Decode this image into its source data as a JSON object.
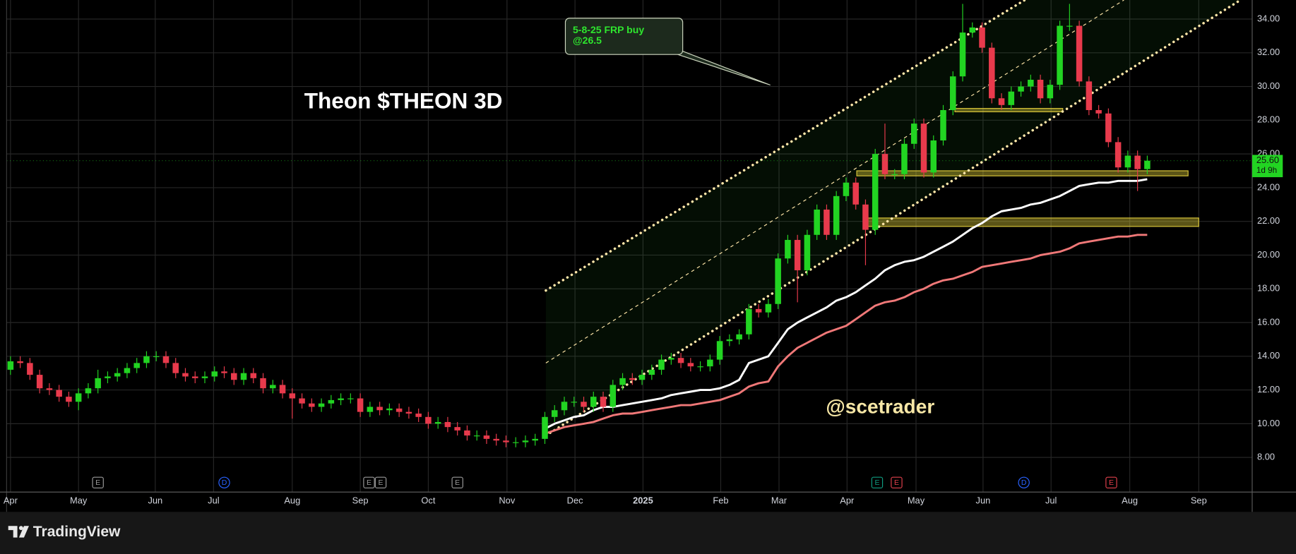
{
  "chart_data": {
    "type": "candlestick",
    "title": "Theon $THEON 3D",
    "watermark": "@scetrader",
    "annotation": {
      "lines": [
        "5-8-25 FRP buy",
        "@26.5"
      ]
    },
    "ylim": [
      6.14,
      35.13
    ],
    "xlim": [
      -0.4,
      127.8
    ],
    "yticks": [
      {
        "value": 8,
        "label": "8.00"
      },
      {
        "value": 10,
        "label": "10.00"
      },
      {
        "value": 12,
        "label": "12.00"
      },
      {
        "value": 14,
        "label": "14.00"
      },
      {
        "value": 16,
        "label": "16.00"
      },
      {
        "value": 18,
        "label": "18.00"
      },
      {
        "value": 20,
        "label": "20.00"
      },
      {
        "value": 22,
        "label": "22.00"
      },
      {
        "value": 24,
        "label": "24.00"
      },
      {
        "value": 26,
        "label": "26.00"
      },
      {
        "value": 28,
        "label": "28.00"
      },
      {
        "value": 30,
        "label": "30.00"
      },
      {
        "value": 32,
        "label": "32.00"
      },
      {
        "value": 34,
        "label": "34.00"
      }
    ],
    "xticks": [
      {
        "value": 0,
        "label": "Apr"
      },
      {
        "value": 7.0,
        "label": "May"
      },
      {
        "value": 14.9,
        "label": "Jun"
      },
      {
        "value": 20.9,
        "label": "Jul"
      },
      {
        "value": 29.0,
        "label": "Aug"
      },
      {
        "value": 36.0,
        "label": "Sep"
      },
      {
        "value": 43.0,
        "label": "Oct"
      },
      {
        "value": 51.1,
        "label": "Nov"
      },
      {
        "value": 58.1,
        "label": "Dec"
      },
      {
        "value": 65.1,
        "label": "2025"
      },
      {
        "value": 73.1,
        "label": "Feb"
      },
      {
        "value": 79.1,
        "label": "Mar"
      },
      {
        "value": 86.1,
        "label": "Apr"
      },
      {
        "value": 93.2,
        "label": "May"
      },
      {
        "value": 100.1,
        "label": "Jun"
      },
      {
        "value": 107.1,
        "label": "Jul"
      },
      {
        "value": 115.2,
        "label": "Aug"
      },
      {
        "value": 122.3,
        "label": "Sep"
      }
    ],
    "grid": true,
    "up_color": "#22d422",
    "down_color": "#e83a4c",
    "ohlc": {
      "open": [
        13.2,
        13.7,
        13.6,
        12.9,
        12.1,
        12.0,
        11.6,
        11.3,
        11.8,
        12.1,
        12.7,
        12.8,
        13.0,
        13.3,
        13.6,
        14.0,
        14.0,
        13.6,
        13.0,
        12.8,
        12.7,
        12.8,
        13.1,
        13.0,
        12.6,
        13.0,
        12.7,
        12.1,
        12.3,
        11.8,
        11.5,
        11.2,
        11.0,
        11.2,
        11.4,
        11.5,
        11.5,
        10.7,
        11.0,
        10.8,
        10.9,
        10.7,
        10.6,
        10.4,
        10.0,
        10.1,
        9.8,
        9.6,
        9.3,
        9.3,
        9.1,
        9.0,
        8.9,
        8.9,
        9.0,
        9.1,
        10.4,
        10.8,
        11.3,
        11.3,
        11.0,
        11.6,
        11.0,
        12.3,
        12.7,
        12.6,
        12.9,
        13.2,
        13.8,
        13.9,
        13.6,
        13.4,
        13.4,
        13.8,
        14.9,
        15.0,
        15.3,
        16.8,
        16.6,
        17.1,
        19.8,
        20.9,
        19.1,
        21.2,
        22.7,
        21.2,
        23.5,
        24.3,
        23.0,
        21.5,
        26.0,
        24.8,
        24.8,
        26.6,
        27.8,
        24.9,
        26.8,
        28.6,
        30.6,
        33.2,
        33.5,
        32.3,
        29.3,
        28.9,
        29.7,
        30.0,
        30.4,
        29.3,
        30.1,
        33.6,
        33.6,
        30.3,
        28.6,
        28.4,
        26.7,
        25.2,
        25.9,
        25.1
      ],
      "high": [
        14.0,
        14.0,
        13.9,
        13.2,
        12.4,
        12.3,
        11.9,
        12.1,
        12.4,
        13.2,
        13.1,
        13.3,
        13.6,
        13.9,
        14.3,
        14.3,
        14.3,
        13.9,
        13.3,
        13.1,
        13.1,
        13.4,
        13.4,
        13.3,
        13.3,
        13.3,
        13.0,
        12.6,
        12.6,
        12.1,
        11.8,
        11.5,
        11.5,
        11.7,
        11.8,
        11.8,
        11.8,
        11.3,
        11.3,
        11.2,
        11.2,
        11.0,
        10.9,
        10.7,
        10.4,
        10.4,
        10.1,
        9.9,
        9.6,
        9.6,
        9.4,
        9.3,
        9.2,
        9.3,
        9.4,
        10.7,
        11.1,
        11.6,
        11.6,
        11.6,
        11.9,
        11.9,
        12.6,
        13.0,
        13.0,
        13.2,
        13.5,
        14.1,
        14.2,
        14.2,
        13.9,
        13.7,
        14.1,
        15.2,
        15.3,
        15.6,
        17.1,
        17.1,
        17.4,
        20.1,
        21.2,
        21.2,
        21.5,
        23.0,
        23.0,
        23.8,
        24.6,
        24.6,
        23.3,
        26.3,
        27.8,
        25.1,
        26.9,
        28.1,
        28.1,
        27.1,
        28.9,
        30.9,
        34.9,
        33.8,
        33.8,
        32.6,
        29.6,
        30.0,
        30.3,
        30.7,
        30.7,
        30.4,
        33.9,
        34.9,
        33.9,
        30.6,
        28.9,
        28.7,
        27.0,
        26.2,
        26.2,
        25.9
      ],
      "low": [
        12.9,
        13.3,
        12.6,
        11.8,
        11.7,
        11.3,
        11.0,
        10.8,
        11.5,
        11.8,
        12.4,
        12.5,
        12.7,
        13.0,
        13.3,
        13.7,
        13.3,
        12.7,
        12.5,
        12.4,
        12.4,
        12.5,
        12.7,
        12.3,
        12.3,
        12.4,
        11.8,
        11.8,
        11.5,
        10.3,
        10.9,
        10.7,
        10.7,
        10.9,
        11.1,
        11.2,
        10.4,
        10.4,
        10.5,
        10.5,
        10.4,
        10.3,
        10.1,
        9.7,
        9.7,
        9.5,
        9.3,
        9.0,
        9.0,
        8.8,
        8.7,
        8.6,
        8.6,
        8.6,
        8.7,
        8.8,
        10.1,
        10.5,
        11.0,
        10.7,
        10.7,
        10.7,
        10.7,
        12.0,
        12.3,
        12.3,
        12.6,
        12.9,
        13.5,
        13.3,
        13.1,
        13.1,
        13.1,
        13.5,
        14.6,
        14.7,
        15.0,
        16.3,
        16.3,
        16.8,
        19.5,
        17.2,
        18.8,
        20.9,
        20.9,
        20.9,
        23.2,
        22.7,
        19.4,
        21.2,
        24.5,
        24.5,
        24.5,
        26.3,
        24.6,
        24.6,
        26.5,
        28.3,
        30.3,
        32.9,
        32.0,
        29.0,
        28.6,
        28.6,
        29.4,
        29.7,
        29.0,
        29.0,
        29.8,
        33.3,
        30.0,
        28.3,
        28.1,
        26.4,
        24.9,
        24.9,
        23.8,
        24.8
      ],
      "close": [
        13.7,
        13.6,
        12.9,
        12.1,
        12.0,
        11.6,
        11.3,
        11.8,
        12.1,
        12.7,
        12.8,
        13.0,
        13.3,
        13.6,
        14.0,
        14.0,
        13.6,
        13.0,
        12.8,
        12.7,
        12.8,
        13.1,
        13.0,
        12.6,
        13.0,
        12.7,
        12.1,
        12.3,
        11.8,
        11.5,
        11.2,
        11.0,
        11.2,
        11.4,
        11.5,
        11.5,
        10.7,
        11.0,
        10.8,
        10.9,
        10.7,
        10.6,
        10.4,
        10.0,
        10.1,
        9.8,
        9.6,
        9.3,
        9.3,
        9.1,
        9.0,
        8.9,
        8.9,
        9.0,
        9.1,
        10.4,
        10.8,
        11.3,
        11.3,
        11.0,
        11.6,
        11.0,
        12.3,
        12.7,
        12.6,
        12.9,
        13.2,
        13.8,
        13.9,
        13.6,
        13.4,
        13.4,
        13.8,
        14.9,
        15.0,
        15.3,
        16.8,
        16.6,
        17.1,
        19.8,
        20.9,
        19.1,
        21.2,
        22.7,
        21.2,
        23.5,
        24.3,
        23.0,
        21.5,
        26.0,
        24.8,
        24.8,
        26.6,
        27.8,
        24.9,
        26.8,
        28.6,
        30.6,
        33.2,
        33.5,
        32.3,
        29.3,
        28.9,
        29.7,
        30.0,
        30.4,
        29.3,
        30.1,
        33.6,
        33.6,
        30.3,
        28.6,
        28.4,
        26.7,
        25.2,
        25.9,
        25.1,
        25.6
      ]
    },
    "moving_averages": [
      {
        "color": "#ffffff",
        "values": [
          null,
          null,
          null,
          null,
          null,
          null,
          null,
          null,
          null,
          null,
          null,
          null,
          null,
          null,
          null,
          null,
          null,
          null,
          null,
          null,
          null,
          null,
          null,
          null,
          null,
          null,
          null,
          null,
          null,
          null,
          null,
          null,
          null,
          null,
          null,
          null,
          null,
          null,
          null,
          null,
          null,
          null,
          null,
          null,
          null,
          null,
          null,
          null,
          null,
          null,
          null,
          null,
          null,
          null,
          null,
          9.7,
          10.0,
          10.2,
          10.4,
          10.5,
          10.8,
          11.0,
          11.0,
          11.1,
          11.2,
          11.3,
          11.4,
          11.5,
          11.7,
          11.8,
          11.9,
          12.0,
          12.0,
          12.1,
          12.3,
          12.6,
          13.6,
          13.8,
          14.0,
          14.8,
          15.6,
          16.0,
          16.3,
          16.6,
          16.9,
          17.3,
          17.5,
          17.8,
          18.2,
          18.6,
          19.1,
          19.4,
          19.6,
          19.7,
          19.9,
          20.2,
          20.5,
          20.8,
          21.2,
          21.6,
          21.9,
          22.3,
          22.6,
          22.7,
          22.8,
          23.0,
          23.1,
          23.3,
          23.5,
          23.8,
          24.1,
          24.2,
          24.3,
          24.3,
          24.4,
          24.4,
          24.4,
          24.5
        ]
      },
      {
        "color": "#f07878",
        "values": [
          null,
          null,
          null,
          null,
          null,
          null,
          null,
          null,
          null,
          null,
          null,
          null,
          null,
          null,
          null,
          null,
          null,
          null,
          null,
          null,
          null,
          null,
          null,
          null,
          null,
          null,
          null,
          null,
          null,
          null,
          null,
          null,
          null,
          null,
          null,
          null,
          null,
          null,
          null,
          null,
          null,
          null,
          null,
          null,
          null,
          null,
          null,
          null,
          null,
          null,
          null,
          null,
          null,
          null,
          null,
          9.4,
          9.6,
          9.8,
          9.9,
          10.0,
          10.1,
          10.3,
          10.5,
          10.6,
          10.6,
          10.7,
          10.8,
          10.9,
          11.0,
          11.1,
          11.1,
          11.2,
          11.3,
          11.4,
          11.6,
          11.8,
          12.2,
          12.4,
          12.5,
          13.4,
          14.0,
          14.5,
          14.8,
          15.1,
          15.4,
          15.6,
          15.8,
          16.2,
          16.6,
          17.0,
          17.2,
          17.3,
          17.5,
          17.8,
          18.0,
          18.3,
          18.5,
          18.6,
          18.8,
          19.0,
          19.3,
          19.4,
          19.5,
          19.6,
          19.7,
          19.8,
          20.0,
          20.1,
          20.2,
          20.4,
          20.7,
          20.8,
          20.9,
          21.0,
          21.1,
          21.1,
          21.2,
          21.2
        ]
      }
    ],
    "channels": [
      {
        "style": "dotted",
        "color": "#ffe6a8",
        "x": [
          55.1,
          104.4
        ],
        "values": [
          17.9,
          35.13
        ]
      },
      {
        "style": "dashed",
        "color": "#ffe6a8",
        "x": [
          55.1,
          114.6
        ],
        "values": [
          13.6,
          35.13
        ]
      },
      {
        "style": "dotted",
        "color": "#ffe6a8",
        "x": [
          55.1,
          126.6
        ],
        "values": [
          9.3,
          35.13
        ]
      }
    ],
    "zones": [
      {
        "x": [
          87.1,
          121.2
        ],
        "low": 24.7,
        "high": 25.0
      },
      {
        "x": [
          87.8,
          122.3
        ],
        "low": 21.7,
        "high": 22.2
      },
      {
        "x": [
          97.2,
          108.3
        ],
        "low": 28.5,
        "high": 28.7
      }
    ],
    "events": [
      {
        "label": "E",
        "x": 9.0,
        "color": "#9a9a9a"
      },
      {
        "label": "D",
        "x": 22.0,
        "color": "#2962ff"
      },
      {
        "label": "E",
        "x": 36.9,
        "color": "#9a9a9a"
      },
      {
        "label": "E",
        "x": 38.1,
        "color": "#9a9a9a"
      },
      {
        "label": "E",
        "x": 46.0,
        "color": "#9a9a9a"
      },
      {
        "label": "E",
        "x": 89.2,
        "color": "#0f9b80"
      },
      {
        "label": "E",
        "x": 91.2,
        "color": "#e0404c"
      },
      {
        "label": "D",
        "x": 104.3,
        "color": "#2962ff"
      },
      {
        "label": "E",
        "x": 113.3,
        "color": "#e0404c"
      }
    ],
    "last_price": {
      "value": 25.6,
      "label": "25.60"
    },
    "countdown": "1d 9h"
  },
  "brand": "TradingView"
}
